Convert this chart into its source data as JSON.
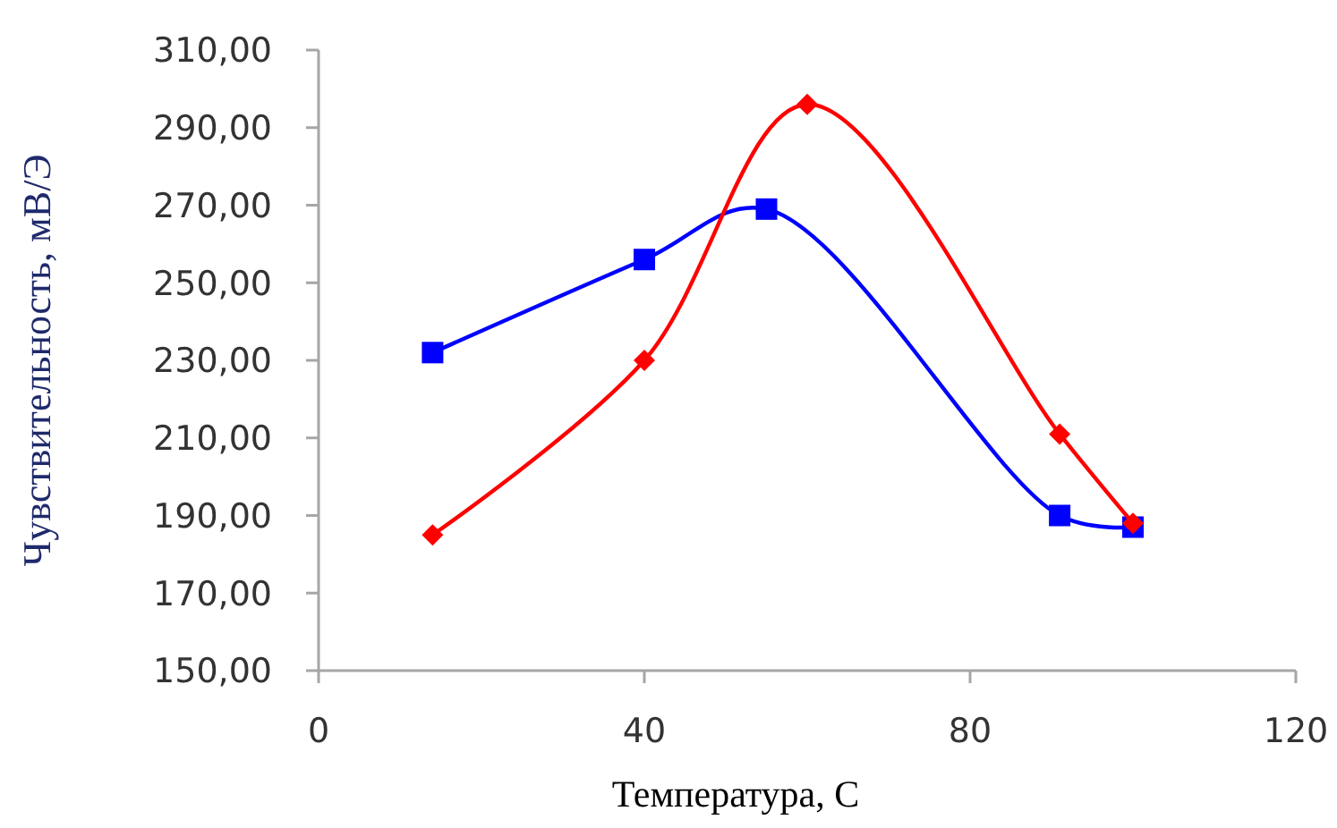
{
  "chart_data": {
    "type": "line",
    "xlabel": "Температура, С",
    "ylabel": "Чувствительность, мВ/Э",
    "xlim": [
      0,
      120
    ],
    "xticks": [
      0,
      40,
      80,
      120
    ],
    "ylim": [
      150,
      310
    ],
    "yticks": [
      {
        "value": 150,
        "label": "150,00"
      },
      {
        "value": 170,
        "label": "170,00"
      },
      {
        "value": 190,
        "label": "190,00"
      },
      {
        "value": 210,
        "label": "210,00"
      },
      {
        "value": 230,
        "label": "230,00"
      },
      {
        "value": 250,
        "label": "250,00"
      },
      {
        "value": 270,
        "label": "270,00"
      },
      {
        "value": 290,
        "label": "290,00"
      },
      {
        "value": 310,
        "label": "310,00"
      }
    ],
    "grid": false,
    "series": [
      {
        "color": "#0000ff",
        "marker": "square",
        "x": [
          14,
          40,
          55,
          91,
          100
        ],
        "values": [
          232,
          256,
          269,
          190,
          187
        ]
      },
      {
        "color": "#ff0000",
        "marker": "diamond",
        "x": [
          14,
          40,
          60,
          91,
          100
        ],
        "values": [
          185,
          230,
          296,
          211,
          188
        ]
      }
    ]
  }
}
